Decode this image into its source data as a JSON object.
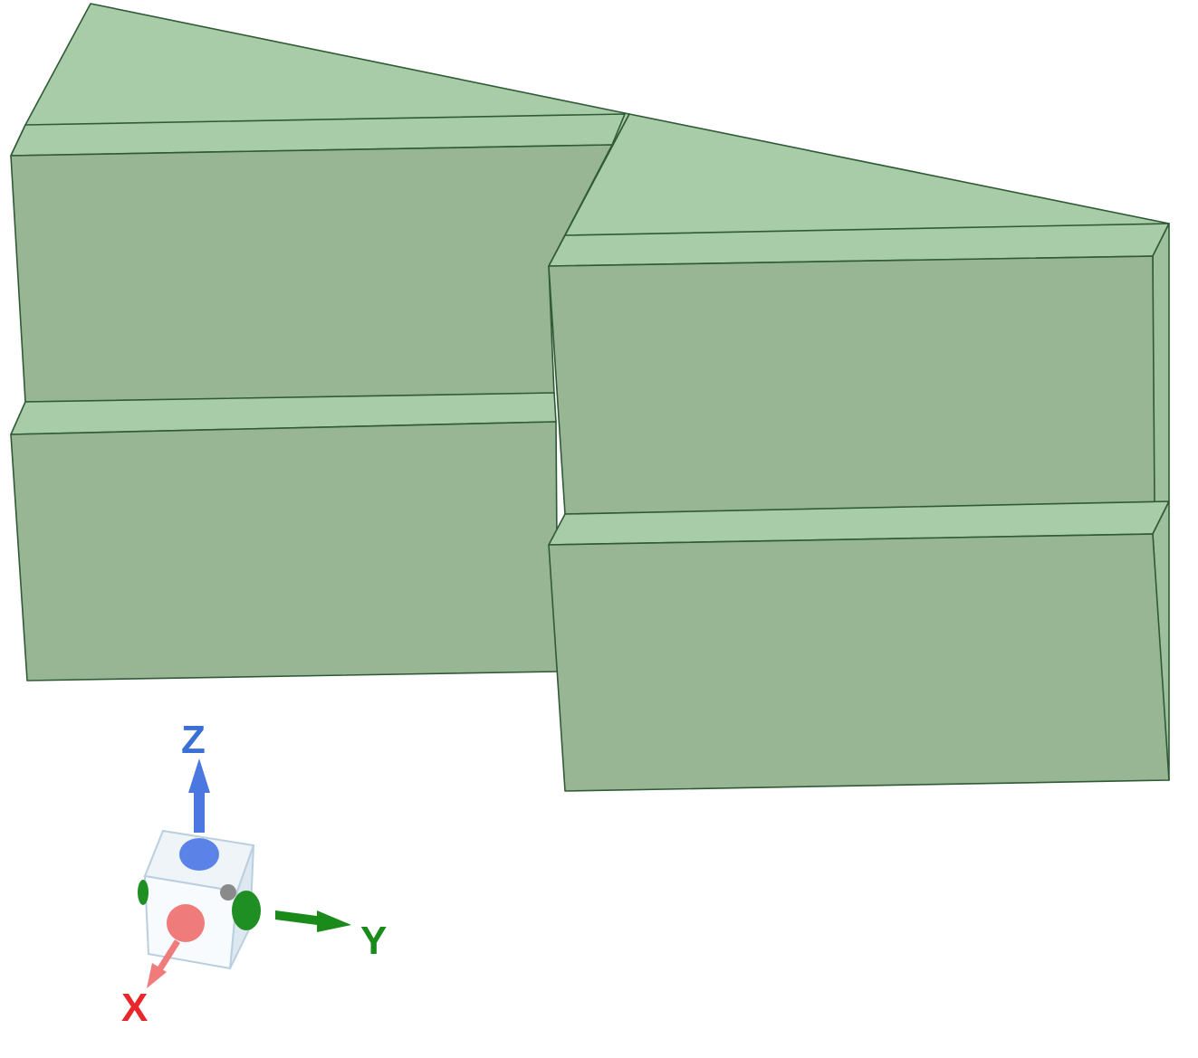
{
  "viewport": {
    "model_colors": {
      "top_face": "#a8cba8",
      "front_face": "#98b694",
      "edge": "#2f5a36"
    }
  },
  "triad": {
    "x_label": "X",
    "y_label": "Y",
    "z_label": "Z",
    "x_color": "#e8262b",
    "y_color": "#1a8a1a",
    "z_color": "#3b6fd8",
    "cube_icon": "view-cube-icon"
  }
}
